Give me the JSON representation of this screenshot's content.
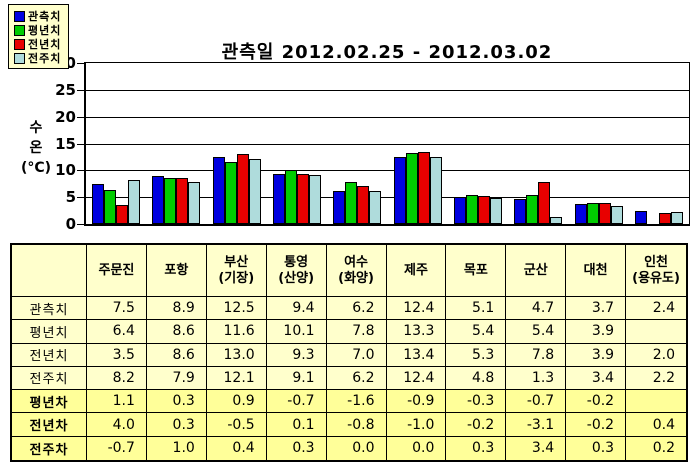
{
  "chart_title": "관측일 2012.02.25 - 2012.03.02",
  "y_axis": {
    "label_lines": [
      "수",
      "온",
      "(°C)"
    ]
  },
  "colors": {
    "observed_blue": "#0000E0",
    "normal_green": "#00CC00",
    "prev_year_red": "#E80000",
    "prev_week_cyan": "#AFDCDC",
    "legend_bg": "#FFFFCC",
    "table_bg": "#FFFFCC",
    "table_diff_bg": "#FFFF99"
  },
  "chart_data": {
    "type": "bar",
    "title": "관측일 2012.02.25 - 2012.03.02",
    "xlabel": "",
    "ylabel": "수온(°C)",
    "ylim": [
      0,
      30
    ],
    "ytick_interval": 5,
    "grid": true,
    "legend_position": "top-left",
    "categories": [
      "주문진",
      "포항",
      "부산(기장)",
      "통영(산양)",
      "여수(화양)",
      "제주",
      "목포",
      "군산",
      "대천",
      "인천(용유도)"
    ],
    "series": [
      {
        "name": "관측치",
        "color": "#0000E0",
        "values": [
          7.5,
          8.9,
          12.5,
          9.4,
          6.2,
          12.4,
          5.1,
          4.7,
          3.7,
          2.4
        ]
      },
      {
        "name": "평년치",
        "color": "#00CC00",
        "values": [
          6.4,
          8.6,
          11.6,
          10.1,
          7.8,
          13.3,
          5.4,
          5.4,
          3.9,
          null
        ]
      },
      {
        "name": "전년치",
        "color": "#E80000",
        "values": [
          3.5,
          8.6,
          13.0,
          9.3,
          7.0,
          13.4,
          5.3,
          7.8,
          3.9,
          2.0
        ]
      },
      {
        "name": "전주치",
        "color": "#AFDCDC",
        "values": [
          8.2,
          7.9,
          12.1,
          9.1,
          6.2,
          12.4,
          4.8,
          1.3,
          3.4,
          2.2
        ]
      }
    ]
  },
  "table": {
    "corner_label": "",
    "columns": [
      {
        "name": "주문진",
        "sub": ""
      },
      {
        "name": "포항",
        "sub": ""
      },
      {
        "name": "부산",
        "sub": "(기장)"
      },
      {
        "name": "통영",
        "sub": "(산양)"
      },
      {
        "name": "여수",
        "sub": "(화양)"
      },
      {
        "name": "제주",
        "sub": ""
      },
      {
        "name": "목포",
        "sub": ""
      },
      {
        "name": "군산",
        "sub": ""
      },
      {
        "name": "대천",
        "sub": ""
      },
      {
        "name": "인천",
        "sub": "(용유도)"
      }
    ],
    "rows": [
      {
        "label": "관측치",
        "bold": false,
        "values": [
          "7.5",
          "8.9",
          "12.5",
          "9.4",
          "6.2",
          "12.4",
          "5.1",
          "4.7",
          "3.7",
          "2.4"
        ]
      },
      {
        "label": "평년치",
        "bold": false,
        "values": [
          "6.4",
          "8.6",
          "11.6",
          "10.1",
          "7.8",
          "13.3",
          "5.4",
          "5.4",
          "3.9",
          ""
        ]
      },
      {
        "label": "전년치",
        "bold": false,
        "values": [
          "3.5",
          "8.6",
          "13.0",
          "9.3",
          "7.0",
          "13.4",
          "5.3",
          "7.8",
          "3.9",
          "2.0"
        ]
      },
      {
        "label": "전주치",
        "bold": false,
        "values": [
          "8.2",
          "7.9",
          "12.1",
          "9.1",
          "6.2",
          "12.4",
          "4.8",
          "1.3",
          "3.4",
          "2.2"
        ]
      },
      {
        "label": "평년차",
        "bold": true,
        "values": [
          "1.1",
          "0.3",
          "0.9",
          "-0.7",
          "-1.6",
          "-0.9",
          "-0.3",
          "-0.7",
          "-0.2",
          ""
        ]
      },
      {
        "label": "전년차",
        "bold": true,
        "values": [
          "4.0",
          "0.3",
          "-0.5",
          "0.1",
          "-0.8",
          "-1.0",
          "-0.2",
          "-3.1",
          "-0.2",
          "0.4"
        ]
      },
      {
        "label": "전주차",
        "bold": true,
        "values": [
          "-0.7",
          "1.0",
          "0.4",
          "0.3",
          "0.0",
          "0.0",
          "0.3",
          "3.4",
          "0.3",
          "0.2"
        ]
      }
    ]
  }
}
